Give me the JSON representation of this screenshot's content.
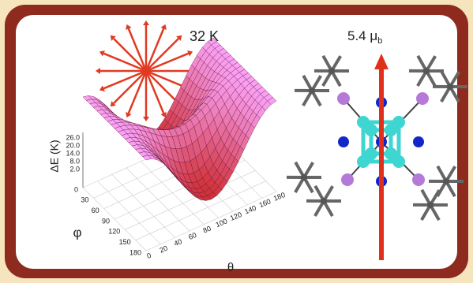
{
  "figure": {
    "temperature_label": "32 K",
    "moment_label": {
      "text": "5.4 μ",
      "subscript": "b"
    },
    "z_axis_title": "ΔE (K)",
    "phi_axis_title": "φ",
    "theta_axis_title": "θ",
    "z_ticks": [
      "26.0",
      "20.0",
      "14.0",
      "8.0",
      "2.0"
    ],
    "phi_ticks": [
      "0",
      "30",
      "60",
      "90",
      "120",
      "150",
      "180"
    ],
    "theta_ticks": [
      "0",
      "20",
      "40",
      "60",
      "80",
      "100",
      "120",
      "140",
      "160",
      "180"
    ]
  }
}
